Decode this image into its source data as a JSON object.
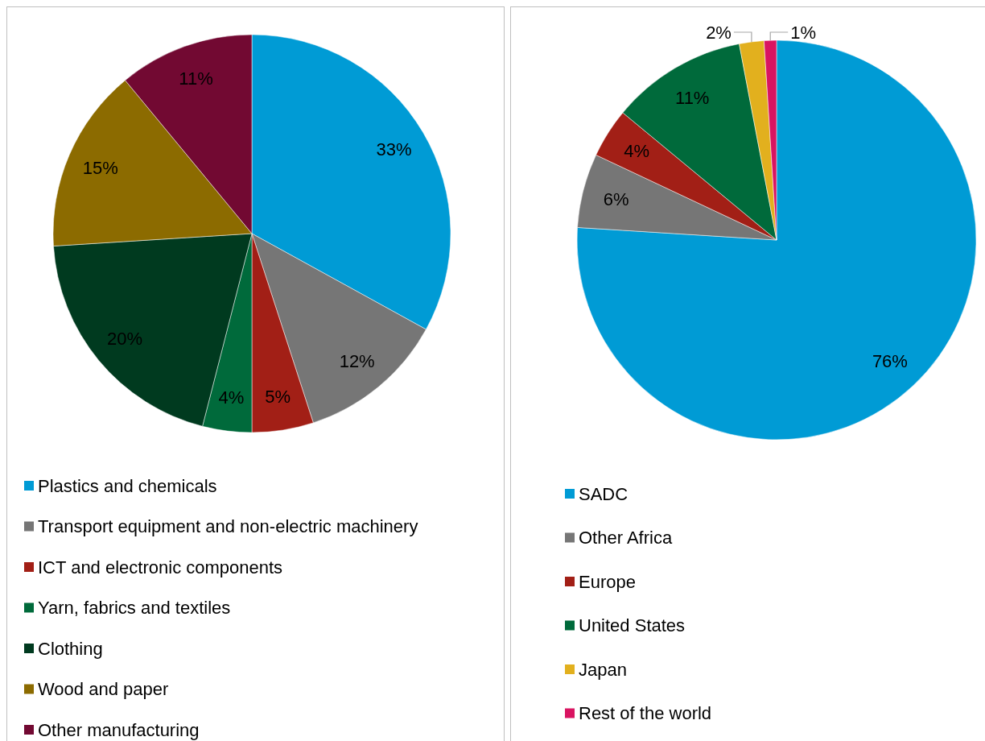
{
  "chart_data": [
    {
      "type": "pie",
      "categories": [
        "Plastics and chemicals",
        "Transport equipment and non-electric machinery",
        "ICT and electronic components",
        "Yarn, fabrics and textiles",
        "Clothing",
        "Wood and paper",
        "Other manufacturing"
      ],
      "values": [
        33,
        12,
        5,
        4,
        20,
        15,
        11
      ],
      "colors": [
        "#009bd5",
        "#767676",
        "#a21f16",
        "#006a3b",
        "#003a1f",
        "#8c6b00",
        "#720932"
      ],
      "value_labels": [
        "33%",
        "12%",
        "5%",
        "4%",
        "20%",
        "15%",
        "11%"
      ],
      "legend": "bottom"
    },
    {
      "type": "pie",
      "categories": [
        "SADC",
        "Other Africa",
        "Europe",
        "United States",
        "Japan",
        "Rest of the world"
      ],
      "values": [
        76,
        6,
        4,
        11,
        2,
        1
      ],
      "colors": [
        "#009bd5",
        "#767676",
        "#a21f16",
        "#006a3b",
        "#e2b01e",
        "#d91461"
      ],
      "value_labels": [
        "76%",
        "6%",
        "4%",
        "11%",
        "2%",
        "1%"
      ],
      "legend": "bottom"
    }
  ]
}
